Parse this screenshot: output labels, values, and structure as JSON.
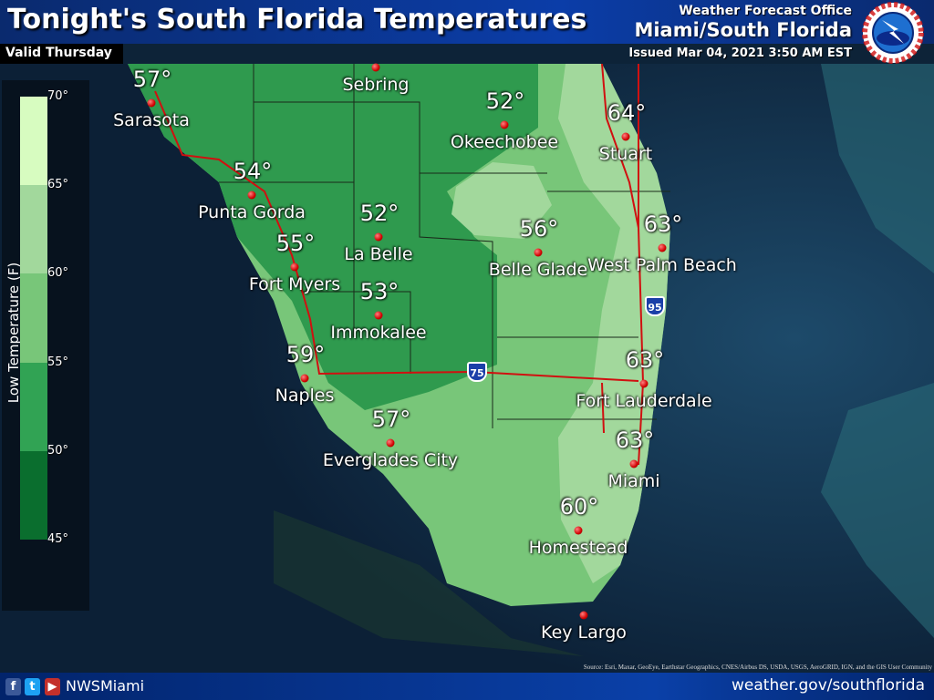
{
  "header": {
    "title": "Tonight's South Florida Temperatures",
    "valid": "Valid Thursday",
    "office_label": "Weather Forecast Office",
    "office_name": "Miami/South Florida",
    "issued": "Issued Mar 04, 2021 3:50 AM EST",
    "logo_text": "NATIONAL WEATHER SERVICE"
  },
  "legend": {
    "title": "Low Temperature (F)",
    "ticks": [
      "70°",
      "65°",
      "60°",
      "55°",
      "50°",
      "45°"
    ],
    "bins": [
      {
        "range": "65-70",
        "color": "#d7fcc0"
      },
      {
        "range": "60-65",
        "color": "#a2d89c"
      },
      {
        "range": "55-60",
        "color": "#78c679"
      },
      {
        "range": "50-55",
        "color": "#31a354"
      },
      {
        "range": "45-50",
        "color": "#0a6e2e"
      }
    ]
  },
  "cities": [
    {
      "name": "Sarasota",
      "temp": "57°"
    },
    {
      "name": "Sebring",
      "temp": ""
    },
    {
      "name": "Okeechobee",
      "temp": "52°"
    },
    {
      "name": "Stuart",
      "temp": "64°"
    },
    {
      "name": "Punta Gorda",
      "temp": "54°"
    },
    {
      "name": "La Belle",
      "temp": "52°"
    },
    {
      "name": "Fort Myers",
      "temp": "55°"
    },
    {
      "name": "Belle Glade",
      "temp": "56°"
    },
    {
      "name": "West Palm Beach",
      "temp": "63°"
    },
    {
      "name": "Immokalee",
      "temp": "53°"
    },
    {
      "name": "Naples",
      "temp": "59°"
    },
    {
      "name": "Fort Lauderdale",
      "temp": "63°"
    },
    {
      "name": "Everglades City",
      "temp": "57°"
    },
    {
      "name": "Miami",
      "temp": "63°"
    },
    {
      "name": "Homestead",
      "temp": "60°"
    },
    {
      "name": "Key Largo",
      "temp": ""
    }
  ],
  "highways": {
    "i75": "75",
    "i95": "95"
  },
  "attribution": "Source: Esri, Maxar, GeoEye, Earthstar Geographics, CNES/Airbus DS, USDA, USGS, AeroGRID, IGN, and the GIS User Community",
  "footer": {
    "handle": "NWSMiami",
    "website": "weather.gov/southflorida",
    "social_icons": [
      "facebook-icon",
      "twitter-icon",
      "youtube-icon"
    ]
  }
}
